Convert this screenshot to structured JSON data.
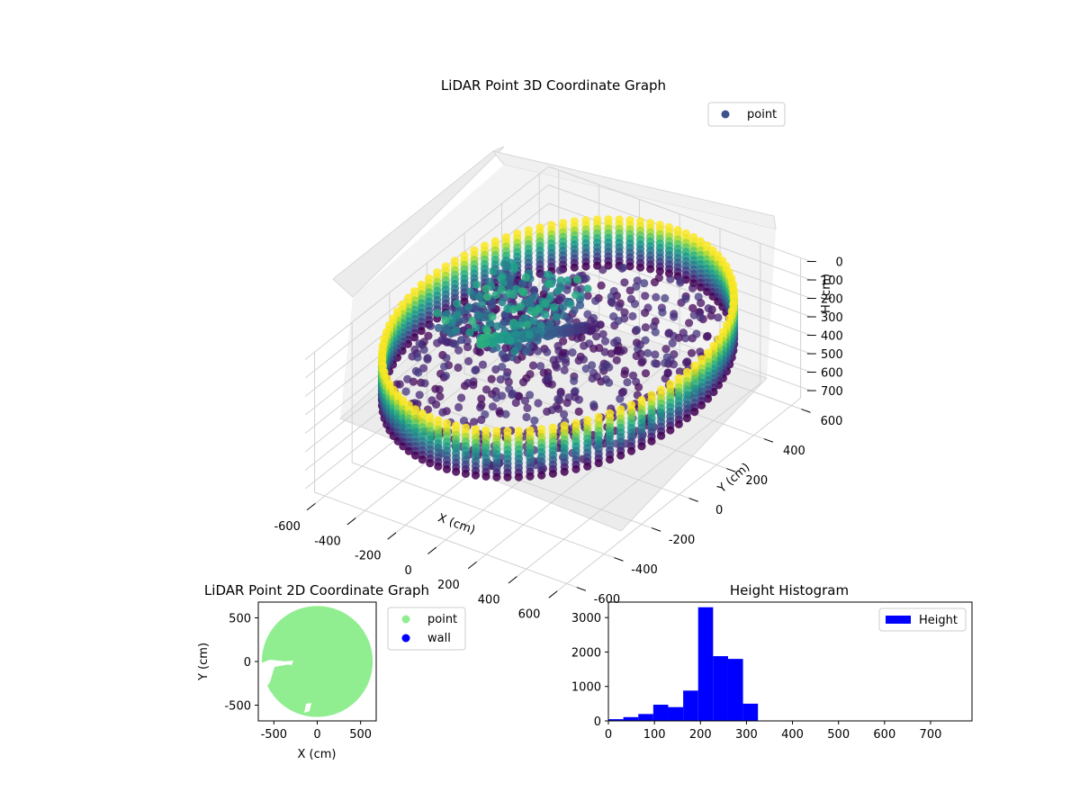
{
  "chart_data": [
    {
      "type": "scatter3d",
      "title": "LiDAR Point 3D Coordinate Graph",
      "xlabel": "X (cm)",
      "ylabel": "Y (cm)",
      "zlabel": "H (cm)",
      "x_ticks": [
        -600,
        -400,
        -200,
        0,
        200,
        400,
        600
      ],
      "y_ticks": [
        -600,
        -400,
        -200,
        0,
        200,
        400,
        600
      ],
      "z_ticks": [
        0,
        100,
        200,
        300,
        400,
        500,
        600,
        700
      ],
      "xlim": [
        -650,
        650
      ],
      "ylim": [
        -650,
        650
      ],
      "zlim": [
        0,
        760
      ],
      "z_inverted": true,
      "colormap": "viridis",
      "grid": true,
      "legend": {
        "position": "top-right",
        "entries": [
          {
            "label": "point",
            "color": "#3b528b"
          }
        ]
      },
      "ring": {
        "radius": 640,
        "height_range": [
          80,
          330
        ]
      },
      "floor_height": 330,
      "structure": {
        "height_range": [
          180,
          330
        ]
      }
    },
    {
      "type": "scatter",
      "title": "LiDAR Point 2D Coordinate Graph",
      "xlabel": "X (cm)",
      "ylabel": "Y (cm)",
      "x_ticks": [
        -500,
        0,
        500
      ],
      "y_ticks": [
        -500,
        0,
        500
      ],
      "xlim": [
        -680,
        680
      ],
      "ylim": [
        -680,
        680
      ],
      "legend": {
        "position": "right-outside",
        "entries": [
          {
            "label": "point",
            "color": "#90ee90"
          },
          {
            "label": "wall",
            "color": "#0000ff"
          }
        ]
      },
      "point_region": {
        "shape": "disc",
        "radius": 640,
        "color": "#90ee90"
      }
    },
    {
      "type": "bar",
      "title": "Height Histogram",
      "x_ticks": [
        0,
        100,
        200,
        300,
        400,
        500,
        600,
        700
      ],
      "y_ticks": [
        0,
        1000,
        2000,
        3000
      ],
      "xlim": [
        0,
        790
      ],
      "ylim": [
        0,
        3450
      ],
      "bar_color": "#0000ff",
      "bin_edges": [
        0,
        32.5,
        65,
        97.5,
        130,
        162.5,
        195,
        227.5,
        260,
        292.5,
        325
      ],
      "values": [
        50,
        110,
        200,
        470,
        400,
        880,
        3300,
        1880,
        1800,
        500
      ],
      "legend": {
        "position": "top-right",
        "entries": [
          {
            "label": "Height",
            "color": "#0000ff"
          }
        ]
      }
    }
  ]
}
